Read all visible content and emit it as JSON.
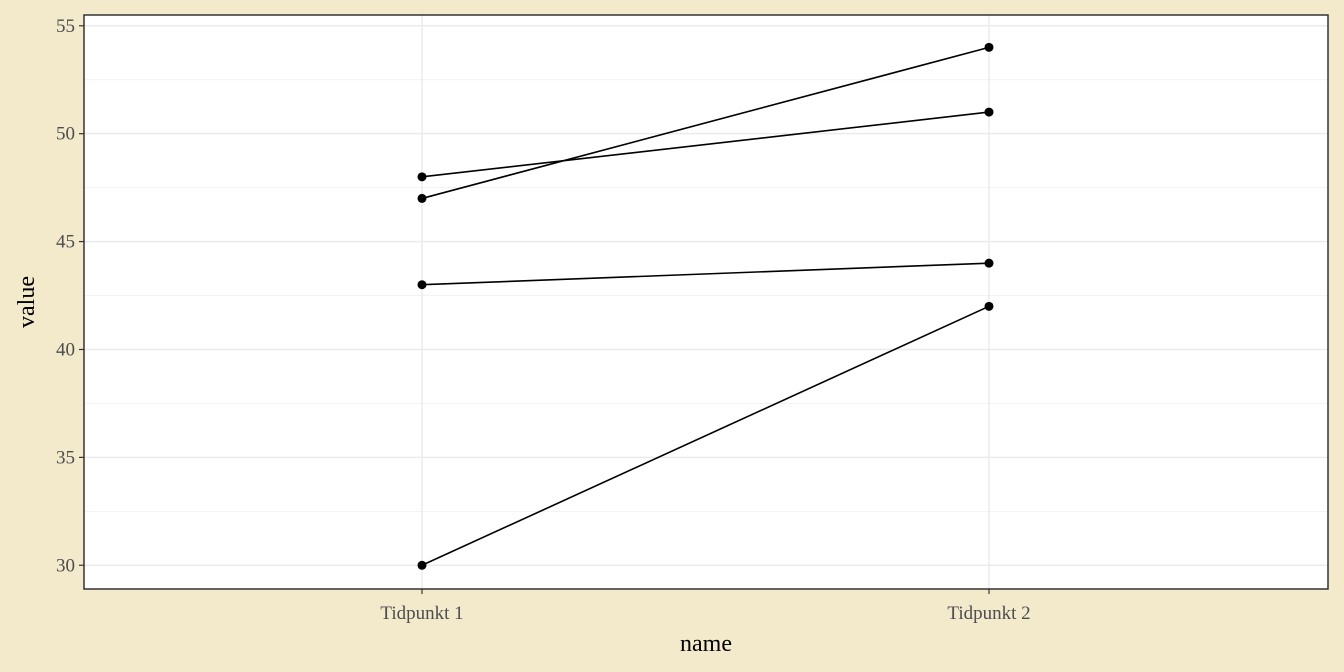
{
  "chart_data": {
    "type": "line",
    "title": "",
    "xlabel": "name",
    "ylabel": "value",
    "categories": [
      "Tidpunkt 1",
      "Tidpunkt 2"
    ],
    "y_ticks": [
      30,
      35,
      40,
      45,
      50,
      55
    ],
    "ylim": [
      28.9,
      55.5
    ],
    "grid": true,
    "legend": "none",
    "series": [
      {
        "values": [
          48,
          51
        ]
      },
      {
        "values": [
          47,
          54
        ]
      },
      {
        "values": [
          43,
          44
        ]
      },
      {
        "values": [
          30,
          42
        ]
      }
    ],
    "colors": {
      "background": "#F3E9CB",
      "panel": "#FFFFFF",
      "grid_major": "#EBEBEB",
      "grid_minor": "#F2F2F2",
      "line": "#000000",
      "border": "#333333"
    }
  }
}
